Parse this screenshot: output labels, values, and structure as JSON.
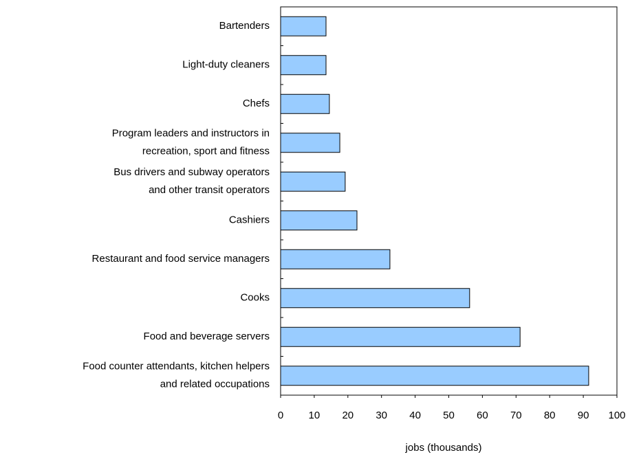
{
  "chart_data": {
    "type": "bar",
    "orientation": "horizontal",
    "x_label": "jobs (thousands)",
    "categories": [
      [
        "Bartenders"
      ],
      [
        "Light-duty cleaners"
      ],
      [
        "Chefs"
      ],
      [
        "Program leaders and instructors in",
        "recreation, sport and fitness"
      ],
      [
        "Bus drivers and subway operators",
        "and other transit operators"
      ],
      [
        "Cashiers"
      ],
      [
        "Restaurant and food service managers"
      ],
      [
        "Cooks"
      ],
      [
        "Food and beverage servers"
      ],
      [
        "Food counter attendants, kitchen helpers",
        "and related occupations"
      ]
    ],
    "values": [
      13.5,
      13.5,
      14.5,
      17.6,
      19.2,
      22.7,
      32.5,
      56.2,
      71.2,
      91.6
    ],
    "color": "#99ccff",
    "xlim": [
      0,
      100
    ],
    "xticks": [
      0,
      10,
      20,
      30,
      40,
      50,
      60,
      70,
      80,
      90,
      100
    ],
    "grid": false
  }
}
